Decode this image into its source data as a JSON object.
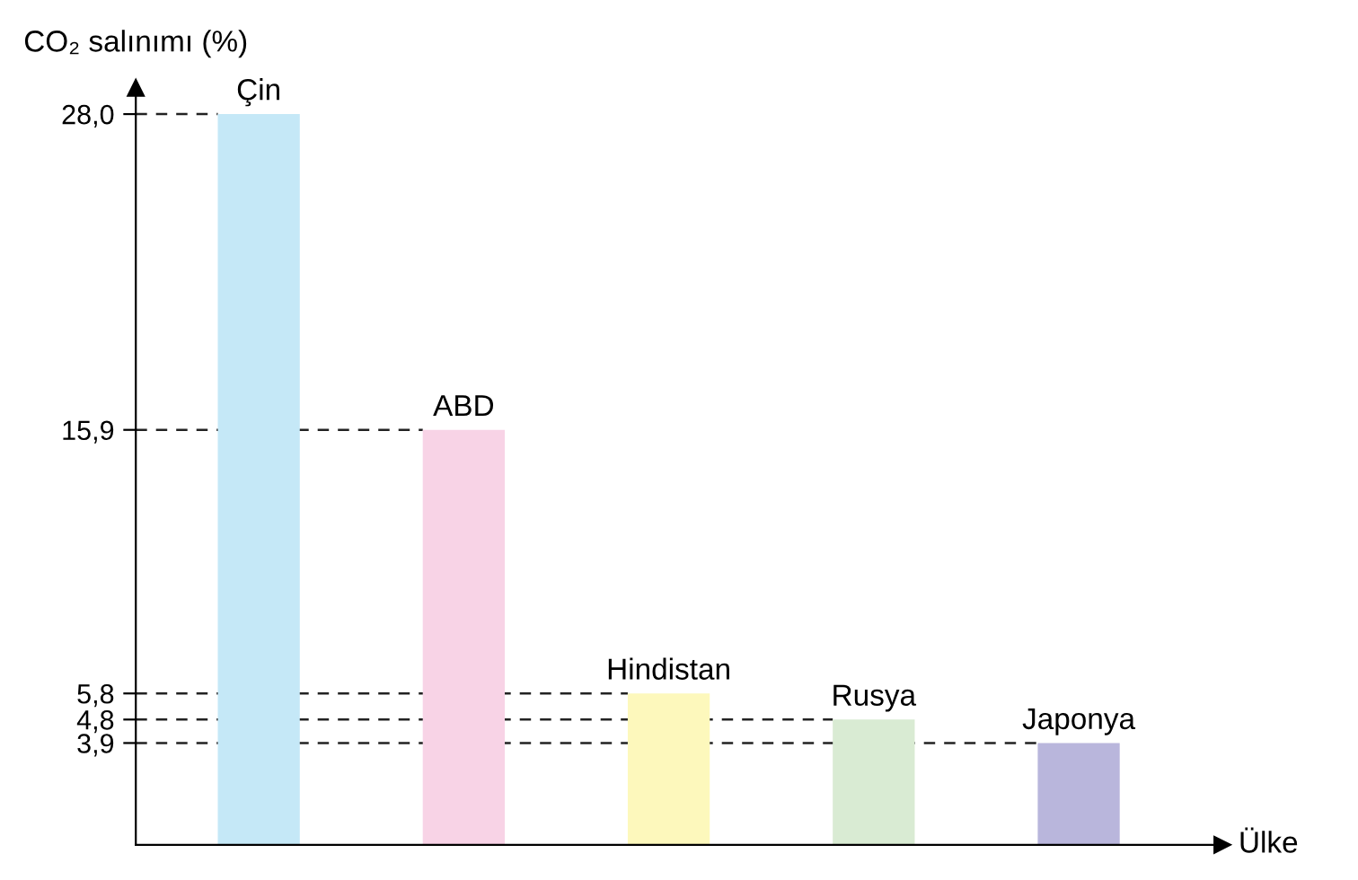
{
  "chart_data": {
    "type": "bar",
    "ylabel": "CO₂ salınımı (%)",
    "xlabel": "Ülke",
    "categories": [
      "Çin",
      "ABD",
      "Hindistan",
      "Rusya",
      "Japonya"
    ],
    "values": [
      28.0,
      15.9,
      5.8,
      4.8,
      3.9
    ],
    "colors": [
      "#c5e8f7",
      "#f8d3e6",
      "#fdf8bc",
      "#d9ebd3",
      "#b9b6dc"
    ],
    "ylim": [
      0,
      29
    ],
    "yticks": [
      {
        "value": 3.9,
        "label": "3,9"
      },
      {
        "value": 4.8,
        "label": "4,8"
      },
      {
        "value": 5.8,
        "label": "5,8"
      },
      {
        "value": 15.9,
        "label": "15,9"
      },
      {
        "value": 28.0,
        "label": "28,0"
      }
    ],
    "ref_lines": [
      {
        "axis": "y",
        "value": 28.0,
        "line_style": "dashed",
        "color": "#222222"
      },
      {
        "axis": "y",
        "value": 15.9,
        "line_style": "dashed",
        "color": "#222222"
      },
      {
        "axis": "y",
        "value": 5.8,
        "line_style": "dashed",
        "color": "#222222"
      },
      {
        "axis": "y",
        "value": 4.8,
        "line_style": "dashed",
        "color": "#222222"
      },
      {
        "axis": "y",
        "value": 3.9,
        "line_style": "dashed",
        "color": "#222222"
      }
    ],
    "tick_labels": "y",
    "grid": false,
    "legend": false
  }
}
